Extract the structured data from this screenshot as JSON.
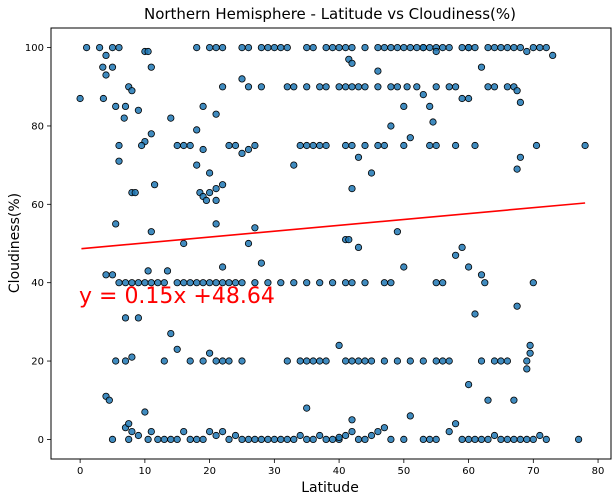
{
  "chart_data": {
    "type": "scatter",
    "title": "Northern Hemisphere - Latitude vs Cloudiness(%)",
    "xlabel": "Latitude",
    "ylabel": "Cloudiness(%)",
    "xlim": [
      -4.5,
      82
    ],
    "ylim": [
      -5,
      105
    ],
    "xticks": [
      0,
      10,
      20,
      30,
      40,
      50,
      60,
      70,
      80
    ],
    "yticks": [
      0,
      20,
      40,
      60,
      80,
      100
    ],
    "grid": false,
    "annotation": "y = 0.15x +48.64",
    "regression": {
      "slope": 0.15,
      "intercept": 48.64,
      "x_range": [
        0.2,
        78
      ],
      "color": "#ff0000"
    },
    "marker_color": "#1f77b4",
    "marker_edge": "#000000",
    "points": [
      [
        1,
        100
      ],
      [
        3,
        100
      ],
      [
        4,
        98
      ],
      [
        5,
        100
      ],
      [
        6,
        100
      ],
      [
        5,
        95
      ],
      [
        4,
        93
      ],
      [
        3.5,
        95
      ],
      [
        3.6,
        87
      ],
      [
        10,
        99
      ],
      [
        10.5,
        99
      ],
      [
        11,
        95
      ],
      [
        18,
        100
      ],
      [
        20,
        100
      ],
      [
        21,
        100
      ],
      [
        22,
        100
      ],
      [
        25,
        100
      ],
      [
        26,
        100
      ],
      [
        28,
        100
      ],
      [
        29,
        100
      ],
      [
        30,
        100
      ],
      [
        31,
        100
      ],
      [
        32,
        100
      ],
      [
        35,
        100
      ],
      [
        36,
        100
      ],
      [
        38,
        100
      ],
      [
        39,
        100
      ],
      [
        40,
        100
      ],
      [
        41,
        100
      ],
      [
        42,
        100
      ],
      [
        44,
        100
      ],
      [
        46,
        100
      ],
      [
        47,
        100
      ],
      [
        48,
        100
      ],
      [
        49,
        100
      ],
      [
        50,
        100
      ],
      [
        51,
        100
      ],
      [
        52,
        100
      ],
      [
        53,
        100
      ],
      [
        54,
        100
      ],
      [
        55,
        100
      ],
      [
        56,
        100
      ],
      [
        57,
        100
      ],
      [
        59,
        100
      ],
      [
        60,
        100
      ],
      [
        61,
        100
      ],
      [
        63,
        100
      ],
      [
        64,
        100
      ],
      [
        65,
        100
      ],
      [
        66,
        100
      ],
      [
        67,
        100
      ],
      [
        68,
        100
      ],
      [
        69,
        99
      ],
      [
        70,
        100
      ],
      [
        71,
        100
      ],
      [
        72,
        100
      ],
      [
        73,
        98
      ],
      [
        55,
        99
      ],
      [
        60,
        100
      ],
      [
        0,
        87
      ],
      [
        7.5,
        90
      ],
      [
        8,
        89
      ],
      [
        9,
        84
      ],
      [
        10,
        76
      ],
      [
        9.5,
        75
      ],
      [
        11,
        78
      ],
      [
        6,
        71
      ],
      [
        5.5,
        85
      ],
      [
        7,
        85
      ],
      [
        6,
        75
      ],
      [
        6.8,
        82
      ],
      [
        18,
        79
      ],
      [
        19,
        85
      ],
      [
        21,
        83
      ],
      [
        22,
        90
      ],
      [
        25,
        92
      ],
      [
        26,
        90
      ],
      [
        28,
        90
      ],
      [
        32,
        90
      ],
      [
        33,
        90
      ],
      [
        35,
        90
      ],
      [
        37,
        90
      ],
      [
        38,
        90
      ],
      [
        40,
        90
      ],
      [
        41,
        90
      ],
      [
        42,
        90
      ],
      [
        43,
        90
      ],
      [
        44,
        90
      ],
      [
        46,
        90
      ],
      [
        48,
        90
      ],
      [
        49,
        90
      ],
      [
        50,
        85
      ],
      [
        50.5,
        90
      ],
      [
        52,
        90
      ],
      [
        53,
        88
      ],
      [
        54,
        85
      ],
      [
        54.5,
        81
      ],
      [
        55,
        90
      ],
      [
        57,
        90
      ],
      [
        58,
        90
      ],
      [
        59,
        87
      ],
      [
        60,
        87
      ],
      [
        62,
        95
      ],
      [
        63,
        90
      ],
      [
        64,
        90
      ],
      [
        66,
        90
      ],
      [
        67,
        90
      ],
      [
        67.5,
        89
      ],
      [
        68,
        86
      ],
      [
        41.5,
        97
      ],
      [
        42,
        96
      ],
      [
        53,
        100
      ],
      [
        46,
        94
      ],
      [
        14,
        82
      ],
      [
        15,
        75
      ],
      [
        16,
        75
      ],
      [
        17,
        75
      ],
      [
        18,
        70
      ],
      [
        19,
        74
      ],
      [
        20,
        68
      ],
      [
        21,
        64
      ],
      [
        22,
        65
      ],
      [
        23,
        75
      ],
      [
        24,
        75
      ],
      [
        25,
        73
      ],
      [
        26,
        74
      ],
      [
        27,
        75
      ],
      [
        33,
        70
      ],
      [
        34,
        75
      ],
      [
        35,
        75
      ],
      [
        36,
        75
      ],
      [
        37,
        75
      ],
      [
        38,
        75
      ],
      [
        41,
        75
      ],
      [
        42,
        75
      ],
      [
        43,
        72
      ],
      [
        44,
        75
      ],
      [
        45,
        68
      ],
      [
        46,
        75
      ],
      [
        47,
        75
      ],
      [
        50,
        75
      ],
      [
        51,
        77
      ],
      [
        54,
        75
      ],
      [
        55,
        75
      ],
      [
        58,
        75
      ],
      [
        61,
        75
      ],
      [
        67.5,
        69
      ],
      [
        68,
        72
      ],
      [
        70.5,
        75
      ],
      [
        78,
        75
      ],
      [
        48,
        80
      ],
      [
        8,
        63
      ],
      [
        8.5,
        63
      ],
      [
        11.5,
        65
      ],
      [
        18.5,
        63
      ],
      [
        19,
        62
      ],
      [
        19.5,
        61
      ],
      [
        20,
        63
      ],
      [
        21,
        61
      ],
      [
        42,
        64
      ],
      [
        26,
        50
      ],
      [
        16,
        50
      ],
      [
        11,
        53
      ],
      [
        5.5,
        55
      ],
      [
        21,
        55
      ],
      [
        27,
        54
      ],
      [
        22,
        44
      ],
      [
        43,
        49
      ],
      [
        49,
        53
      ],
      [
        59,
        49
      ],
      [
        60,
        44
      ],
      [
        58,
        47
      ],
      [
        62,
        42
      ],
      [
        62.5,
        40
      ],
      [
        28,
        45
      ],
      [
        41,
        51
      ],
      [
        41.5,
        51
      ],
      [
        4,
        42
      ],
      [
        5,
        42
      ],
      [
        6,
        40
      ],
      [
        7,
        40
      ],
      [
        8,
        40
      ],
      [
        9,
        40
      ],
      [
        10,
        40
      ],
      [
        11,
        40
      ],
      [
        12,
        40
      ],
      [
        13,
        40
      ],
      [
        13.5,
        43
      ],
      [
        15,
        40
      ],
      [
        16,
        40
      ],
      [
        17,
        40
      ],
      [
        18,
        40
      ],
      [
        19,
        40
      ],
      [
        20,
        40
      ],
      [
        21,
        40
      ],
      [
        22,
        40
      ],
      [
        23,
        40
      ],
      [
        24,
        40
      ],
      [
        25,
        40
      ],
      [
        27,
        40
      ],
      [
        29,
        40
      ],
      [
        31,
        40
      ],
      [
        33,
        40
      ],
      [
        35,
        40
      ],
      [
        37,
        40
      ],
      [
        39,
        40
      ],
      [
        41,
        40
      ],
      [
        42,
        40
      ],
      [
        44,
        40
      ],
      [
        47,
        40
      ],
      [
        48,
        40
      ],
      [
        50,
        44
      ],
      [
        55,
        40
      ],
      [
        56,
        40
      ],
      [
        61,
        32
      ],
      [
        67.5,
        34
      ],
      [
        70,
        40
      ],
      [
        10.5,
        43
      ],
      [
        7,
        31
      ],
      [
        9,
        31
      ],
      [
        13,
        20
      ],
      [
        14,
        27
      ],
      [
        15,
        23
      ],
      [
        17,
        20
      ],
      [
        19,
        20
      ],
      [
        20,
        22
      ],
      [
        21,
        20
      ],
      [
        22,
        20
      ],
      [
        23,
        20
      ],
      [
        25,
        20
      ],
      [
        32,
        20
      ],
      [
        34,
        20
      ],
      [
        35,
        20
      ],
      [
        36,
        20
      ],
      [
        37,
        20
      ],
      [
        38,
        20
      ],
      [
        40,
        24
      ],
      [
        41,
        20
      ],
      [
        42,
        20
      ],
      [
        43,
        20
      ],
      [
        44,
        20
      ],
      [
        45,
        20
      ],
      [
        47,
        20
      ],
      [
        49,
        20
      ],
      [
        51,
        20
      ],
      [
        53,
        20
      ],
      [
        55,
        20
      ],
      [
        56,
        20
      ],
      [
        57,
        20
      ],
      [
        62,
        20
      ],
      [
        64,
        20
      ],
      [
        65,
        20
      ],
      [
        66,
        20
      ],
      [
        69,
        20
      ],
      [
        69.5,
        22
      ],
      [
        69,
        18
      ],
      [
        69.5,
        24
      ],
      [
        60,
        14
      ],
      [
        63,
        10
      ],
      [
        67,
        10
      ],
      [
        5.5,
        20
      ],
      [
        7,
        20
      ],
      [
        8,
        21
      ],
      [
        4,
        11
      ],
      [
        4.5,
        10
      ],
      [
        5,
        0
      ],
      [
        7,
        3
      ],
      [
        7.5,
        4
      ],
      [
        8,
        2
      ],
      [
        9,
        1
      ],
      [
        10,
        7
      ],
      [
        10.5,
        0
      ],
      [
        11,
        2
      ],
      [
        12,
        0
      ],
      [
        13,
        0
      ],
      [
        14,
        0
      ],
      [
        15,
        0
      ],
      [
        16,
        2
      ],
      [
        17,
        0
      ],
      [
        18,
        0
      ],
      [
        19,
        0
      ],
      [
        20,
        2
      ],
      [
        21,
        1
      ],
      [
        22,
        2
      ],
      [
        23,
        0
      ],
      [
        24,
        1
      ],
      [
        25,
        0
      ],
      [
        26,
        0
      ],
      [
        27,
        0
      ],
      [
        28,
        0
      ],
      [
        29,
        0
      ],
      [
        30,
        0
      ],
      [
        31,
        0
      ],
      [
        33,
        0
      ],
      [
        34,
        1
      ],
      [
        35,
        0
      ],
      [
        36,
        0
      ],
      [
        37,
        1
      ],
      [
        38,
        0
      ],
      [
        39,
        0
      ],
      [
        40,
        0
      ],
      [
        41,
        1
      ],
      [
        42,
        5
      ],
      [
        43,
        0
      ],
      [
        44,
        0
      ],
      [
        45,
        1
      ],
      [
        46,
        2
      ],
      [
        47,
        3
      ],
      [
        48,
        0
      ],
      [
        50,
        0
      ],
      [
        51,
        6
      ],
      [
        53,
        0
      ],
      [
        54,
        0
      ],
      [
        55,
        0
      ],
      [
        57,
        2
      ],
      [
        58,
        4
      ],
      [
        59,
        0
      ],
      [
        60,
        0
      ],
      [
        61,
        0
      ],
      [
        62,
        0
      ],
      [
        63,
        0
      ],
      [
        64,
        1
      ],
      [
        65,
        0
      ],
      [
        66,
        0
      ],
      [
        67,
        0
      ],
      [
        68,
        0
      ],
      [
        69,
        0
      ],
      [
        70,
        0
      ],
      [
        71,
        1
      ],
      [
        72,
        0
      ],
      [
        35,
        8
      ],
      [
        77,
        0
      ],
      [
        7.5,
        0
      ],
      [
        42,
        2
      ],
      [
        32,
        0
      ],
      [
        40,
        0.5
      ]
    ]
  }
}
